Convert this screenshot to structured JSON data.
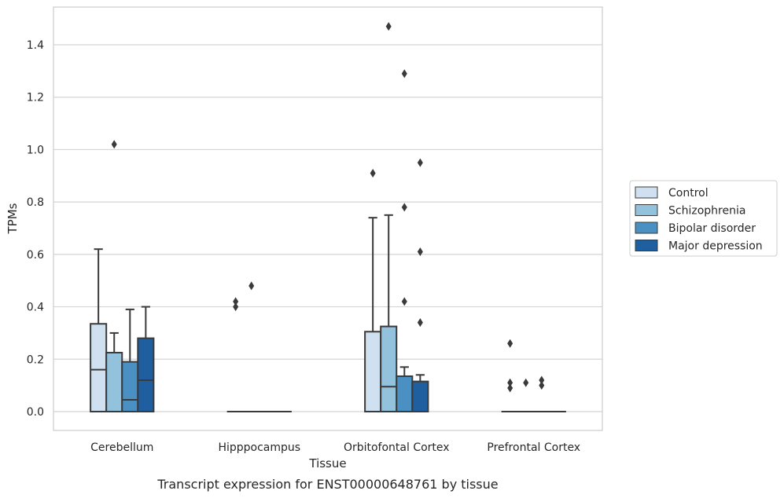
{
  "chart_data": {
    "type": "boxplot",
    "title": "Transcript expression for ENST00000648761 by tissue",
    "xlabel": "Tissue",
    "ylabel": "TPMs",
    "ylim": [
      -0.07,
      1.545
    ],
    "yticks": [
      0.0,
      0.2,
      0.4,
      0.6,
      0.8,
      1.0,
      1.2,
      1.4
    ],
    "ytick_labels": [
      "0.0",
      "0.2",
      "0.4",
      "0.6",
      "0.8",
      "1.0",
      "1.2",
      "1.4"
    ],
    "grid": "horizontal",
    "legend_position": "right",
    "categories": [
      "Cerebellum",
      "Hipppocampus",
      "Orbitofontal Cortex",
      "Prefrontal Cortex"
    ],
    "series": [
      {
        "name": "Control",
        "color": "#cfe1f0",
        "boxes": [
          {
            "q1": 0.0,
            "median": 0.16,
            "q3": 0.335,
            "whisker_low": 0.0,
            "whisker_high": 0.62,
            "outliers": []
          },
          {
            "q1": 0.0,
            "median": 0.0,
            "q3": 0.0,
            "whisker_low": 0.0,
            "whisker_high": 0.0,
            "outliers": [
              0.42,
              0.4
            ]
          },
          {
            "q1": 0.0,
            "median": 0.0,
            "q3": 0.305,
            "whisker_low": 0.0,
            "whisker_high": 0.74,
            "outliers": [
              0.91
            ]
          },
          {
            "q1": 0.0,
            "median": 0.0,
            "q3": 0.0,
            "whisker_low": 0.0,
            "whisker_high": 0.0,
            "outliers": [
              0.26,
              0.11,
              0.09
            ]
          }
        ]
      },
      {
        "name": "Schizophrenia",
        "color": "#93c2dd",
        "boxes": [
          {
            "q1": 0.0,
            "median": 0.0,
            "q3": 0.225,
            "whisker_low": 0.0,
            "whisker_high": 0.3,
            "outliers": [
              1.02
            ]
          },
          {
            "q1": 0.0,
            "median": 0.0,
            "q3": 0.0,
            "whisker_low": 0.0,
            "whisker_high": 0.0,
            "outliers": [
              0.48
            ]
          },
          {
            "q1": 0.0,
            "median": 0.095,
            "q3": 0.325,
            "whisker_low": 0.0,
            "whisker_high": 0.75,
            "outliers": [
              1.47
            ]
          },
          {
            "q1": 0.0,
            "median": 0.0,
            "q3": 0.0,
            "whisker_low": 0.0,
            "whisker_high": 0.0,
            "outliers": [
              0.11
            ]
          }
        ]
      },
      {
        "name": "Bipolar disorder",
        "color": "#4a90c2",
        "boxes": [
          {
            "q1": 0.0,
            "median": 0.045,
            "q3": 0.19,
            "whisker_low": 0.0,
            "whisker_high": 0.39,
            "outliers": []
          },
          {
            "q1": 0.0,
            "median": 0.0,
            "q3": 0.0,
            "whisker_low": 0.0,
            "whisker_high": 0.0,
            "outliers": []
          },
          {
            "q1": 0.0,
            "median": 0.0,
            "q3": 0.135,
            "whisker_low": 0.0,
            "whisker_high": 0.17,
            "outliers": [
              1.29,
              0.78,
              0.42
            ]
          },
          {
            "q1": 0.0,
            "median": 0.0,
            "q3": 0.0,
            "whisker_low": 0.0,
            "whisker_high": 0.0,
            "outliers": [
              0.12,
              0.1
            ]
          }
        ]
      },
      {
        "name": "Major depression",
        "color": "#1f5fa0",
        "boxes": [
          {
            "q1": 0.0,
            "median": 0.12,
            "q3": 0.28,
            "whisker_low": 0.0,
            "whisker_high": 0.4,
            "outliers": []
          },
          {
            "q1": 0.0,
            "median": 0.0,
            "q3": 0.0,
            "whisker_low": 0.0,
            "whisker_high": 0.0,
            "outliers": []
          },
          {
            "q1": 0.0,
            "median": 0.0,
            "q3": 0.115,
            "whisker_low": 0.0,
            "whisker_high": 0.14,
            "outliers": [
              0.95,
              0.61,
              0.34
            ]
          },
          {
            "q1": 0.0,
            "median": 0.0,
            "q3": 0.0,
            "whisker_low": 0.0,
            "whisker_high": 0.0,
            "outliers": []
          }
        ]
      }
    ]
  }
}
